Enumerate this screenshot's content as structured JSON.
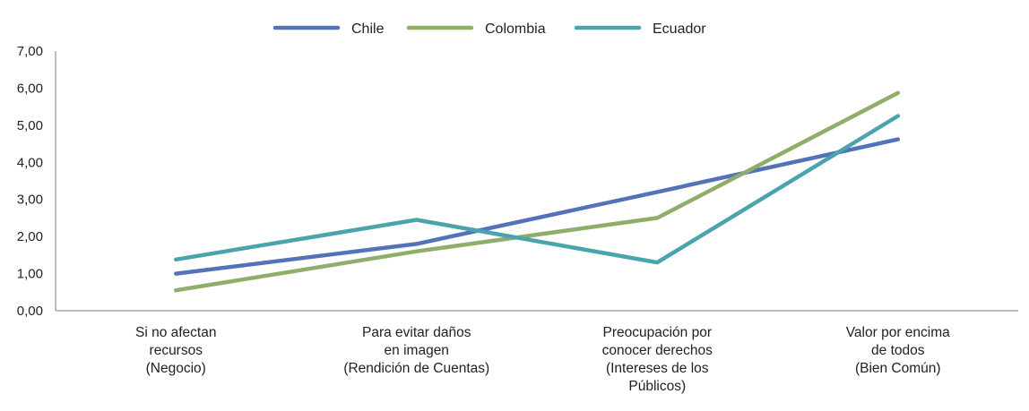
{
  "chart_data": {
    "type": "line",
    "categories": [
      [
        "Si no afectan",
        "recursos",
        "(Negocio)"
      ],
      [
        "Para evitar daños",
        "en imagen",
        "(Rendición de Cuentas)"
      ],
      [
        "Preocupación por",
        "conocer derechos",
        "(Intereses de los",
        "Públicos)"
      ],
      [
        "Valor por encima",
        "de todos",
        "(Bien Común)"
      ]
    ],
    "series": [
      {
        "name": "Chile",
        "color": "#5472b8",
        "values": [
          1.0,
          1.8,
          3.2,
          4.62
        ]
      },
      {
        "name": "Colombia",
        "color": "#8fad6b",
        "values": [
          0.55,
          1.6,
          2.5,
          5.87
        ]
      },
      {
        "name": "Ecuador",
        "color": "#4ba3ad",
        "values": [
          1.38,
          2.45,
          1.3,
          5.25
        ]
      }
    ],
    "yticks": [
      "0,00",
      "1,00",
      "2,00",
      "3,00",
      "4,00",
      "5,00",
      "6,00",
      "7,00"
    ],
    "ylim": [
      0,
      7
    ],
    "legend_position": "top-center",
    "grid": false
  }
}
